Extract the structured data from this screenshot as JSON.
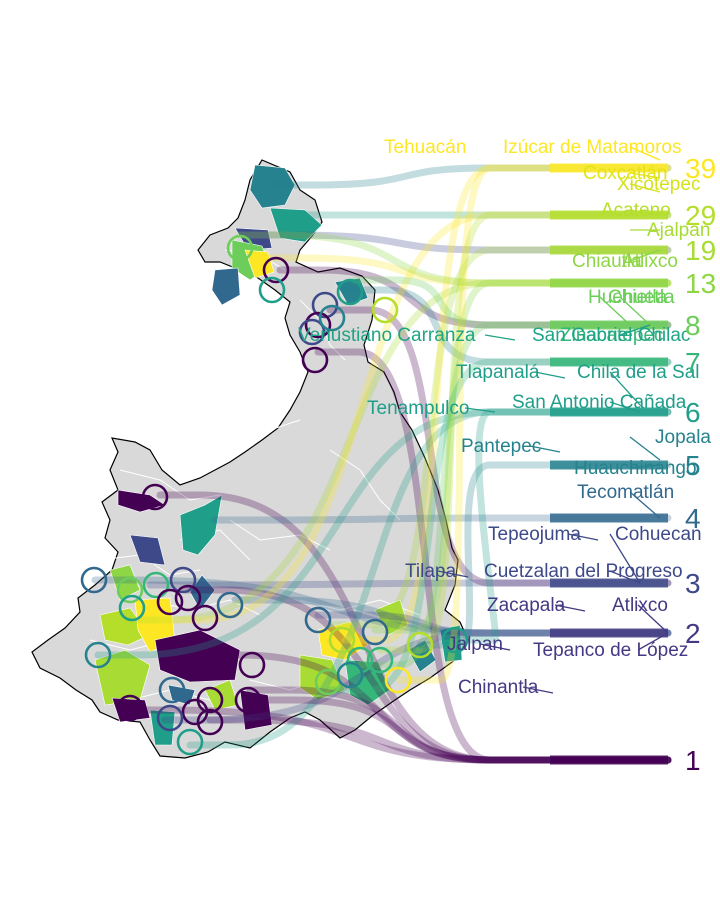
{
  "chart_data": {
    "type": "bump-map",
    "title": "",
    "xlabel": "",
    "ylabel": "",
    "color_scale": "viridis",
    "rank_labels": [
      "1",
      "2",
      "3",
      "4",
      "5",
      "6",
      "7",
      "8",
      "13",
      "19",
      "29",
      "39"
    ],
    "labeled_municipalities": [
      {
        "name": "Tehuacán",
        "rank": 39,
        "color": "#fde725"
      },
      {
        "name": "Izúcar de Matamoros",
        "rank": 39,
        "color": "#fde725"
      },
      {
        "name": "Coxcatlán",
        "rank": 34,
        "color": "#e2e418"
      },
      {
        "name": "Xicotepec",
        "rank": 33,
        "color": "#d5e21a"
      },
      {
        "name": "Acateno",
        "rank": 29,
        "color": "#b5de2b"
      },
      {
        "name": "Ajalpan",
        "rank": 27,
        "color": "#a8db34"
      },
      {
        "name": "Chiautla",
        "rank": 19,
        "color": "#8ed645"
      },
      {
        "name": "Atlixco",
        "rank": 19,
        "color": "#8ed645"
      },
      {
        "name": "Huehuetla",
        "rank": 13,
        "color": "#6ccd5a"
      },
      {
        "name": "Chietla",
        "rank": 13,
        "color": "#6ccd5a"
      },
      {
        "name": "Zinacatepec",
        "rank": 8,
        "color": "#35b779"
      },
      {
        "name": "Venustiano Carranza",
        "rank": 7,
        "color": "#20a486"
      },
      {
        "name": "San Gabriel Chilac",
        "rank": 7,
        "color": "#20a486"
      },
      {
        "name": "Tlapanalá",
        "rank": 6,
        "color": "#1f9e89"
      },
      {
        "name": "Chila de la Sal",
        "rank": 6,
        "color": "#1f9e89"
      },
      {
        "name": "Tenampulco",
        "rank": 6,
        "color": "#1f9e89"
      },
      {
        "name": "San Antonio Cañada",
        "rank": 6,
        "color": "#1f9e89"
      },
      {
        "name": "Jopala",
        "rank": 5,
        "color": "#26828e"
      },
      {
        "name": "Pantepec",
        "rank": 5,
        "color": "#26828e"
      },
      {
        "name": "Huauchinango",
        "rank": 5,
        "color": "#26828e"
      },
      {
        "name": "Tecomatlán",
        "rank": 4,
        "color": "#31688e"
      },
      {
        "name": "Tepeojuma",
        "rank": 3,
        "color": "#3e4989"
      },
      {
        "name": "Cohuecan",
        "rank": 3,
        "color": "#3e4989"
      },
      {
        "name": "Tilapa",
        "rank": 3,
        "color": "#3e4989"
      },
      {
        "name": "Cuetzalan del Progreso",
        "rank": 3,
        "color": "#3e4989"
      },
      {
        "name": "Zacapala",
        "rank": 2,
        "color": "#443983"
      },
      {
        "name": "Atlixco",
        "rank": 2,
        "color": "#443983"
      },
      {
        "name": "Jalpan",
        "rank": 2,
        "color": "#443983"
      },
      {
        "name": "Tepanco de López",
        "rank": 2,
        "color": "#443983"
      },
      {
        "name": "Chinantla",
        "rank": 2,
        "color": "#443983"
      }
    ],
    "rank_bars": [
      {
        "rank": 1,
        "color": "#440154"
      },
      {
        "rank": 2,
        "color": "#443983"
      },
      {
        "rank": 3,
        "color": "#3e4989"
      },
      {
        "rank": 4,
        "color": "#31688e"
      },
      {
        "rank": 5,
        "color": "#26828e"
      },
      {
        "rank": 6,
        "color": "#1f9e89"
      },
      {
        "rank": 7,
        "color": "#35b779"
      },
      {
        "rank": 8,
        "color": "#6ccd5a"
      },
      {
        "rank": 13,
        "color": "#8ed645"
      },
      {
        "rank": 19,
        "color": "#a8db34"
      },
      {
        "rank": 29,
        "color": "#b5de2b"
      },
      {
        "rank": 39,
        "color": "#fde725"
      }
    ],
    "map": {
      "region": "Puebla",
      "fill_default": "#d9d9d9",
      "border": "#ffffff",
      "outline": "#000000"
    }
  }
}
